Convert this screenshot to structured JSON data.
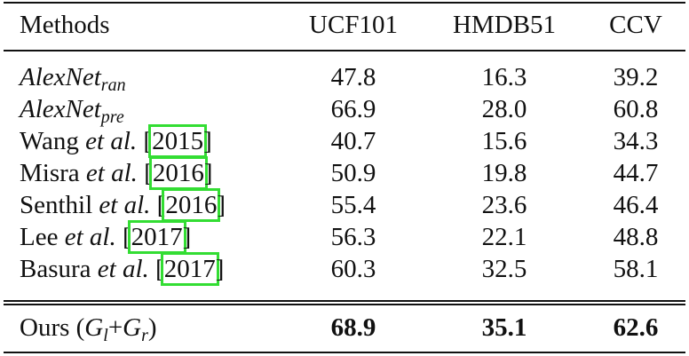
{
  "table": {
    "header": [
      "Methods",
      "UCF101",
      "HMDB51",
      "CCV"
    ],
    "rows": [
      {
        "method": [
          {
            "text": "AlexNet",
            "style": "math"
          },
          {
            "text": "ran",
            "style": "sub"
          }
        ],
        "cells": [
          "47.8",
          "16.3",
          "39.2"
        ],
        "bold": false
      },
      {
        "method": [
          {
            "text": "AlexNet",
            "style": "math"
          },
          {
            "text": "pre",
            "style": "sub"
          }
        ],
        "cells": [
          "66.9",
          "28.0",
          "60.8"
        ],
        "bold": false
      },
      {
        "method": [
          {
            "text": "Wang ",
            "style": "normal"
          },
          {
            "text": "et al.",
            "style": "italic"
          },
          {
            "text": " [",
            "style": "normal"
          },
          {
            "text": "2015",
            "style": "cite"
          },
          {
            "text": "]",
            "style": "normal"
          }
        ],
        "cells": [
          "40.7",
          "15.6",
          "34.3"
        ],
        "bold": false
      },
      {
        "method": [
          {
            "text": "Misra ",
            "style": "normal"
          },
          {
            "text": "et al.",
            "style": "italic"
          },
          {
            "text": " [",
            "style": "normal"
          },
          {
            "text": "2016",
            "style": "cite"
          },
          {
            "text": "]",
            "style": "normal"
          }
        ],
        "cells": [
          "50.9",
          "19.8",
          "44.7"
        ],
        "bold": false
      },
      {
        "method": [
          {
            "text": "Senthil ",
            "style": "normal"
          },
          {
            "text": "et al.",
            "style": "italic"
          },
          {
            "text": " [",
            "style": "normal"
          },
          {
            "text": "2016",
            "style": "cite"
          },
          {
            "text": "]",
            "style": "normal"
          }
        ],
        "cells": [
          "55.4",
          "23.6",
          "46.4"
        ],
        "bold": false
      },
      {
        "method": [
          {
            "text": "Lee ",
            "style": "normal"
          },
          {
            "text": "et al.",
            "style": "italic"
          },
          {
            "text": " [",
            "style": "normal"
          },
          {
            "text": "2017",
            "style": "cite"
          },
          {
            "text": "]",
            "style": "normal"
          }
        ],
        "cells": [
          "56.3",
          "22.1",
          "48.8"
        ],
        "bold": false
      },
      {
        "method": [
          {
            "text": "Basura ",
            "style": "normal"
          },
          {
            "text": "et al.",
            "style": "italic"
          },
          {
            "text": " [",
            "style": "normal"
          },
          {
            "text": "2017",
            "style": "cite"
          },
          {
            "text": "]",
            "style": "normal"
          }
        ],
        "cells": [
          "60.3",
          "32.5",
          "58.1"
        ],
        "bold": false
      },
      {
        "method": [
          {
            "text": "Ours (",
            "style": "normal"
          },
          {
            "text": "G",
            "style": "math"
          },
          {
            "text": "l",
            "style": "sub"
          },
          {
            "text": "+",
            "style": "normal"
          },
          {
            "text": "G",
            "style": "math"
          },
          {
            "text": "r",
            "style": "sub"
          },
          {
            "text": ")",
            "style": "normal"
          }
        ],
        "cells": [
          "68.9",
          "35.1",
          "62.6"
        ],
        "bold": true
      }
    ]
  }
}
